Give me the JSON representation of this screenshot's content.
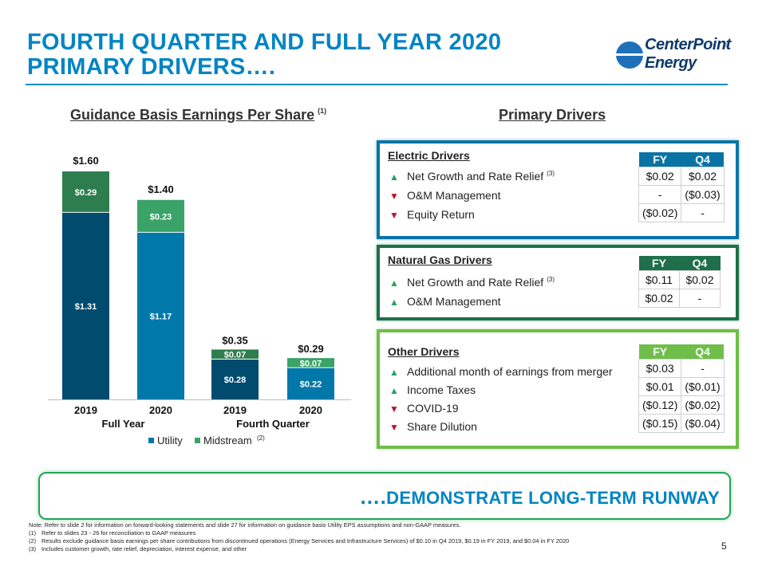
{
  "title": {
    "line1": "FOURTH QUARTER AND FULL YEAR 2020",
    "line2": "PRIMARY DRIVERS…."
  },
  "logo": {
    "line1": "CenterPoint",
    "line2": "Energy",
    "reg": "®"
  },
  "colors": {
    "title": "#0085c3",
    "utility": "#004b6e",
    "utility2020": "#0078aa",
    "midstream": "#2e7d4f",
    "midstream2020": "#3aa367",
    "up": "#27a35a",
    "down": "#b3192a"
  },
  "chart_section": {
    "heading": "Guidance Basis Earnings Per Share",
    "footnote": "(1)"
  },
  "drivers_section": {
    "heading": "Primary Drivers"
  },
  "chart_data": {
    "type": "bar",
    "stacked": true,
    "categories": [
      "2019",
      "2020",
      "2019",
      "2020"
    ],
    "groups": [
      {
        "label": "Full Year",
        "categories": [
          0,
          1
        ]
      },
      {
        "label": "Fourth Quarter",
        "categories": [
          2,
          3
        ]
      }
    ],
    "series": [
      {
        "name": "Utility",
        "values": [
          1.31,
          1.17,
          0.28,
          0.22
        ],
        "labels": [
          "$1.31",
          "$1.17",
          "$0.28",
          "$0.22"
        ]
      },
      {
        "name": "Midstream",
        "values": [
          0.29,
          0.23,
          0.07,
          0.07
        ],
        "labels": [
          "$0.29",
          "$0.23",
          "$0.07",
          "$0.07"
        ]
      }
    ],
    "totals": [
      1.6,
      1.4,
      0.35,
      0.29
    ],
    "total_labels": [
      "$1.60",
      "$1.40",
      "$0.35",
      "$0.29"
    ],
    "legend": {
      "position": "bottom",
      "items": [
        "Utility",
        "Midstream"
      ],
      "midstream_footnote": "(2)"
    },
    "ylim": [
      0,
      1.6
    ],
    "grid": false
  },
  "electric": {
    "title": "Electric Drivers",
    "header": [
      "FY",
      "Q4"
    ],
    "rows": [
      {
        "dir": "up",
        "label": "Net Growth and Rate Relief",
        "note": "(3)",
        "fy": "$0.02",
        "q4": "$0.02"
      },
      {
        "dir": "down",
        "label": "O&M Management",
        "note": "",
        "fy": "-",
        "q4": "($0.03)"
      },
      {
        "dir": "down",
        "label": "Equity Return",
        "note": "",
        "fy": "($0.02)",
        "q4": "-"
      }
    ]
  },
  "gas": {
    "title": "Natural Gas Drivers",
    "header": [
      "FY",
      "Q4"
    ],
    "rows": [
      {
        "dir": "up",
        "label": "Net Growth and Rate Relief",
        "note": "(3)",
        "fy": "$0.11",
        "q4": "$0.02"
      },
      {
        "dir": "up",
        "label": "O&M Management",
        "note": "",
        "fy": "$0.02",
        "q4": "-"
      }
    ]
  },
  "other": {
    "title": "Other Drivers",
    "header": [
      "FY",
      "Q4"
    ],
    "rows": [
      {
        "dir": "up",
        "label": "Additional month of earnings from merger",
        "note": "",
        "fy": "$0.03",
        "q4": "-"
      },
      {
        "dir": "up",
        "label": "Income Taxes",
        "note": "",
        "fy": "$0.01",
        "q4": "($0.01)"
      },
      {
        "dir": "down",
        "label": "COVID-19",
        "note": "",
        "fy": "($0.12)",
        "q4": "($0.02)"
      },
      {
        "dir": "down",
        "label": "Share Dilution",
        "note": "",
        "fy": "($0.15)",
        "q4": "($0.04)"
      }
    ]
  },
  "banner": {
    "dots": "….",
    "text": "DEMONSTRATE LONG-TERM RUNWAY"
  },
  "notes": [
    {
      "n": "Note:",
      "t": "Refer to slide 2 for information on forward-looking statements and slide 27 for information on guidance basis Utility EPS assumptions and non-GAAP measures."
    },
    {
      "n": "(1)",
      "t": "Refer to slides 23 - 26 for reconciliation to GAAP measures"
    },
    {
      "n": "(2)",
      "t": "Results exclude guidance basis earnings per share contributions from discontinued operations (Energy Services and Infrastructure Services) of $0.10 in Q4 2019, $0.19 in FY 2019, and $0.04 in FY 2020"
    },
    {
      "n": "(3)",
      "t": "Includes customer growth, rate relief, depreciation, interest expense, and other"
    }
  ],
  "page_number": "5"
}
